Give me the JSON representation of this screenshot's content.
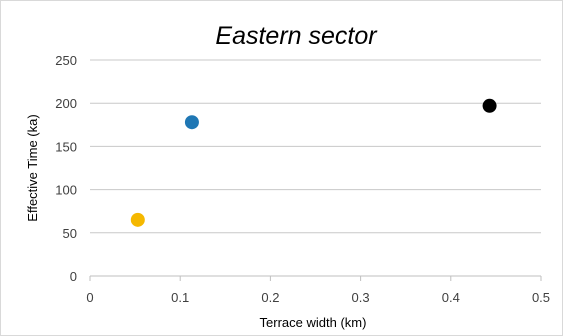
{
  "chart_data": {
    "type": "scatter",
    "title": "Eastern sector",
    "xlabel": "Terrace width (km)",
    "ylabel": "Effective Time (ka)",
    "xlim": [
      0,
      0.5
    ],
    "ylim": [
      0,
      250
    ],
    "x_ticks": [
      0,
      0.1,
      0.2,
      0.3,
      0.4,
      0.5
    ],
    "x_tick_labels": [
      "0",
      "0.1",
      "0.2",
      "0.3",
      "0.4",
      "0.5"
    ],
    "y_ticks": [
      0,
      50,
      100,
      150,
      200,
      250
    ],
    "y_tick_labels": [
      "0",
      "50",
      "100",
      "150",
      "200",
      "250"
    ],
    "grid": "horizontal",
    "legend": "none",
    "points": [
      {
        "x": 0.053,
        "y": 65,
        "color": "#f5b800"
      },
      {
        "x": 0.113,
        "y": 178,
        "color": "#1f77b4"
      },
      {
        "x": 0.443,
        "y": 197,
        "color": "#000000"
      }
    ]
  }
}
